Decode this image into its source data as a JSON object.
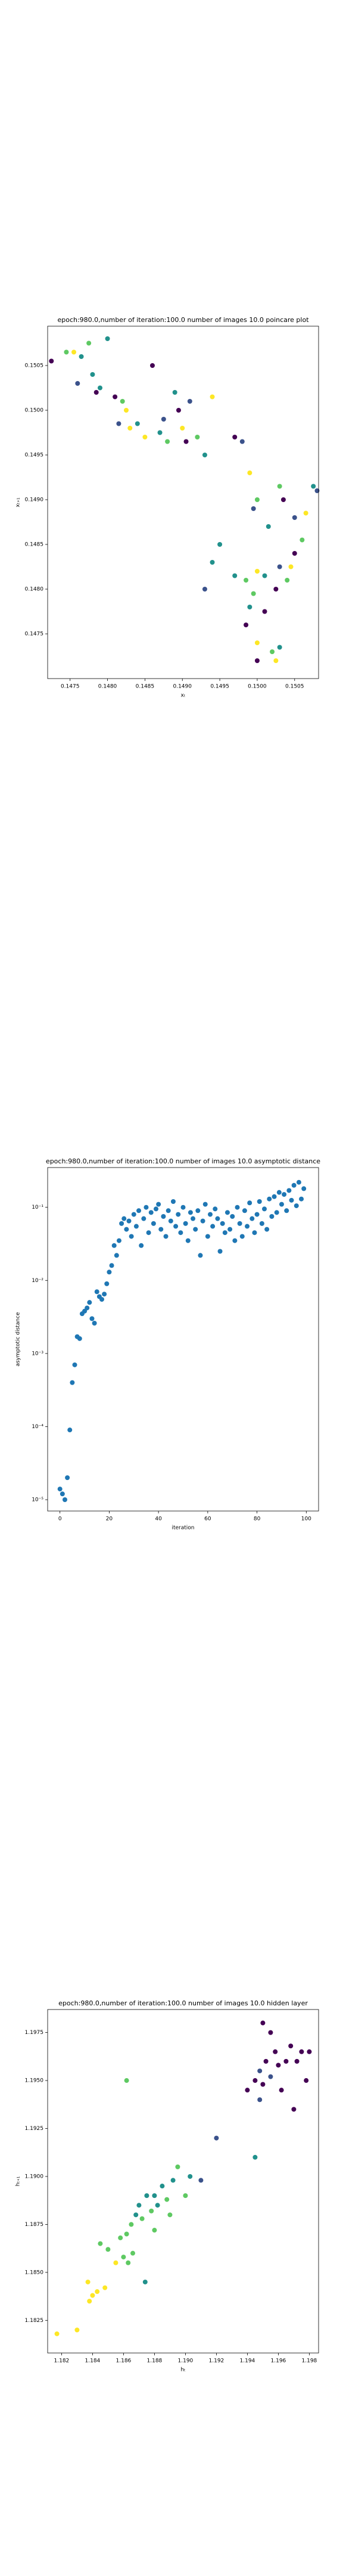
{
  "chart_data": [
    {
      "type": "scatter",
      "title": "epoch:980.0,number of iteration:100.0  number of images 10.0 poincare plot",
      "xlabel": "xₜ",
      "ylabel": "xₜ₊₁",
      "xlim": [
        0.1472,
        0.15082
      ],
      "ylim": [
        0.147,
        0.15094
      ],
      "xticks": [
        0.1475,
        {
          "value": 0.148,
          "label": "0.1480"
        },
        0.1485,
        {
          "value": 0.149,
          "label": "0.1490"
        },
        0.1495,
        {
          "value": 0.15,
          "label": "0.1500"
        },
        0.1505
      ],
      "yticks": [
        0.1475,
        {
          "value": 0.148,
          "label": "0.1480"
        },
        0.1485,
        {
          "value": 0.149,
          "label": "0.1490"
        },
        0.1495,
        {
          "value": 0.15,
          "label": "0.1500"
        },
        0.1505
      ],
      "x": [
        0.14725,
        0.14745,
        0.14755,
        0.14765,
        0.1476,
        0.1478,
        0.1479,
        0.14785,
        0.148,
        0.14775,
        0.1481,
        0.14815,
        0.1482,
        0.14825,
        0.1483,
        0.1484,
        0.1485,
        0.1486,
        0.1487,
        0.14875,
        0.1488,
        0.1489,
        0.14895,
        0.149,
        0.14905,
        0.1491,
        0.1492,
        0.1493,
        0.1494,
        0.1497,
        0.1498,
        0.1499,
        0.14995,
        0.15,
        0.15015,
        0.1503,
        0.15035,
        0.1505,
        0.15065,
        0.15075,
        0.1508,
        0.1506,
        0.1505,
        0.15045,
        0.1504,
        0.1503,
        0.15025,
        0.1501,
        0.1501,
        0.15,
        0.14995,
        0.1499,
        0.14985,
        0.15,
        0.15,
        0.1502,
        0.15025,
        0.1503,
        0.1497,
        0.1494,
        0.1493,
        0.1495,
        0.14985
      ],
      "y": [
        0.15055,
        0.15065,
        0.15065,
        0.1506,
        0.1503,
        0.1504,
        0.15025,
        0.1502,
        0.1508,
        0.15075,
        0.15015,
        0.14985,
        0.1501,
        0.15,
        0.1498,
        0.14985,
        0.1497,
        0.1505,
        0.14975,
        0.1499,
        0.14965,
        0.1502,
        0.15,
        0.1498,
        0.14965,
        0.1501,
        0.1497,
        0.1495,
        0.15015,
        0.1497,
        0.14965,
        0.1493,
        0.1489,
        0.149,
        0.1487,
        0.14915,
        0.149,
        0.1488,
        0.14885,
        0.14915,
        0.1491,
        0.14855,
        0.1484,
        0.14825,
        0.1481,
        0.14825,
        0.148,
        0.14775,
        0.14815,
        0.1482,
        0.14795,
        0.1478,
        0.1476,
        0.1474,
        0.1472,
        0.1473,
        0.1472,
        0.14735,
        0.14815,
        0.1483,
        0.148,
        0.1485,
        0.1481
      ],
      "colors": [
        "#440154",
        "#5ec962",
        "#fde725",
        "#21918c",
        "#3b528b",
        "#21918c",
        "#21918c",
        "#440154",
        "#21918c",
        "#5ec962",
        "#440154",
        "#3b528b",
        "#5ec962",
        "#fde725",
        "#fde725",
        "#21918c",
        "#fde725",
        "#440154",
        "#21918c",
        "#3b528b",
        "#5ec962",
        "#21918c",
        "#440154",
        "#fde725",
        "#440154",
        "#3b528b",
        "#5ec962",
        "#21918c",
        "#fde725",
        "#440154",
        "#3b528b",
        "#fde725",
        "#3b528b",
        "#5ec962",
        "#21918c",
        "#5ec962",
        "#440154",
        "#3b528b",
        "#fde725",
        "#21918c",
        "#3b528b",
        "#5ec962",
        "#440154",
        "#fde725",
        "#5ec962",
        "#3b528b",
        "#440154",
        "#440154",
        "#21918c",
        "#fde725",
        "#5ec962",
        "#21918c",
        "#440154",
        "#fde725",
        "#440154",
        "#5ec962",
        "#fde725",
        "#21918c",
        "#21918c",
        "#21918c",
        "#3b528b",
        "#21918c",
        "#5ec962"
      ]
    },
    {
      "type": "scatter",
      "log_y": true,
      "title": "epoch:980.0,number of iteration:100.0  number of images 10.0 asymptotic distance",
      "xlabel": "iteration",
      "ylabel": "asymptotic distance",
      "xlim": [
        -5,
        105
      ],
      "ylim": [
        7e-06,
        0.35
      ],
      "xticks": [
        0,
        20,
        40,
        60,
        80,
        100
      ],
      "yticks": [
        {
          "value": 0.1,
          "label": "10⁻¹"
        },
        {
          "value": 0.01,
          "label": "10⁻²"
        },
        {
          "value": 0.001,
          "label": "10⁻³"
        },
        {
          "value": 0.0001,
          "label": "10⁻⁴"
        },
        {
          "value": 1e-05,
          "label": "10⁻⁵"
        }
      ],
      "color": "#1f77b4",
      "x": [
        0,
        1,
        2,
        3,
        4,
        5,
        6,
        7,
        8,
        9,
        10,
        11,
        12,
        13,
        14,
        15,
        16,
        17,
        18,
        19,
        20,
        21,
        22,
        23,
        24,
        25,
        26,
        27,
        28,
        29,
        30,
        31,
        32,
        33,
        34,
        35,
        36,
        37,
        38,
        39,
        40,
        41,
        42,
        43,
        44,
        45,
        46,
        47,
        48,
        49,
        50,
        51,
        52,
        53,
        54,
        55,
        56,
        57,
        58,
        59,
        60,
        61,
        62,
        63,
        64,
        65,
        66,
        67,
        68,
        69,
        70,
        71,
        72,
        73,
        74,
        75,
        76,
        77,
        78,
        79,
        80,
        81,
        82,
        83,
        84,
        85,
        86,
        87,
        88,
        89,
        90,
        91,
        92,
        93,
        94,
        95,
        96,
        97,
        98,
        99
      ],
      "y": [
        1.4e-05,
        1.2e-05,
        1e-05,
        2e-05,
        9e-05,
        0.0004,
        0.0007,
        0.0017,
        0.0016,
        0.0035,
        0.0038,
        0.0042,
        0.005,
        0.003,
        0.0026,
        0.007,
        0.006,
        0.0055,
        0.0065,
        0.009,
        0.013,
        0.016,
        0.03,
        0.022,
        0.035,
        0.06,
        0.07,
        0.05,
        0.065,
        0.04,
        0.08,
        0.055,
        0.09,
        0.03,
        0.07,
        0.1,
        0.045,
        0.085,
        0.06,
        0.095,
        0.11,
        0.05,
        0.075,
        0.04,
        0.09,
        0.065,
        0.12,
        0.055,
        0.08,
        0.045,
        0.1,
        0.06,
        0.035,
        0.085,
        0.07,
        0.05,
        0.09,
        0.022,
        0.065,
        0.11,
        0.04,
        0.08,
        0.055,
        0.095,
        0.07,
        0.025,
        0.06,
        0.045,
        0.085,
        0.05,
        0.075,
        0.035,
        0.1,
        0.06,
        0.04,
        0.09,
        0.055,
        0.115,
        0.07,
        0.045,
        0.08,
        0.12,
        0.06,
        0.095,
        0.05,
        0.13,
        0.075,
        0.14,
        0.085,
        0.16,
        0.11,
        0.15,
        0.09,
        0.17,
        0.125,
        0.2,
        0.105,
        0.22,
        0.13,
        0.18
      ]
    },
    {
      "type": "scatter",
      "title": "epoch:980.0,number of iteration:100.0  number of images 10.0 hidden layer",
      "xlabel": "hₜ",
      "ylabel": "hₜ₊₁",
      "xlim": [
        1.1811,
        1.1986
      ],
      "ylim": [
        1.1808,
        1.1987
      ],
      "xticks": [
        1.182,
        1.184,
        1.186,
        1.188,
        {
          "value": 1.19,
          "label": "1.190"
        },
        1.192,
        1.194,
        1.196,
        1.198
      ],
      "yticks": [
        1.1825,
        {
          "value": 1.185,
          "label": "1.1850"
        },
        1.1875,
        {
          "value": 1.19,
          "label": "1.1900"
        },
        1.1925,
        {
          "value": 1.195,
          "label": "1.1950"
        },
        1.1975
      ],
      "x": [
        1.1817,
        1.183,
        1.1837,
        1.184,
        1.1843,
        1.1848,
        1.1838,
        1.1855,
        1.1845,
        1.185,
        1.1858,
        1.1862,
        1.1865,
        1.1868,
        1.186,
        1.1863,
        1.187,
        1.1872,
        1.1875,
        1.1878,
        1.188,
        1.1882,
        1.1885,
        1.1888,
        1.189,
        1.1892,
        1.1895,
        1.188,
        1.1874,
        1.1866,
        1.1862,
        1.19,
        1.1903,
        1.191,
        1.192,
        1.1945,
        1.194,
        1.1945,
        1.1948,
        1.195,
        1.1952,
        1.1955,
        1.1958,
        1.196,
        1.1962,
        1.1965,
        1.1968,
        1.197,
        1.1972,
        1.1975,
        1.1978,
        1.198,
        1.195,
        1.1955,
        1.1948
      ],
      "y": [
        1.1818,
        1.182,
        1.1845,
        1.1838,
        1.184,
        1.1842,
        1.1835,
        1.1855,
        1.1865,
        1.1862,
        1.1868,
        1.187,
        1.1875,
        1.188,
        1.1858,
        1.1855,
        1.1885,
        1.1878,
        1.189,
        1.1882,
        1.189,
        1.1885,
        1.1895,
        1.1888,
        1.188,
        1.1898,
        1.1905,
        1.1872,
        1.1845,
        1.186,
        1.195,
        1.189,
        1.19,
        1.1898,
        1.192,
        1.191,
        1.1945,
        1.195,
        1.1955,
        1.1948,
        1.196,
        1.1952,
        1.1965,
        1.1958,
        1.1945,
        1.196,
        1.1968,
        1.1935,
        1.196,
        1.1965,
        1.195,
        1.1965,
        1.198,
        1.1975,
        1.194
      ],
      "colors": [
        "#fde725",
        "#fde725",
        "#fde725",
        "#fde725",
        "#fde725",
        "#fde725",
        "#fde725",
        "#fde725",
        "#5ec962",
        "#5ec962",
        "#5ec962",
        "#5ec962",
        "#5ec962",
        "#21918c",
        "#5ec962",
        "#5ec962",
        "#21918c",
        "#5ec962",
        "#21918c",
        "#5ec962",
        "#21918c",
        "#21918c",
        "#21918c",
        "#5ec962",
        "#5ec962",
        "#21918c",
        "#5ec962",
        "#5ec962",
        "#21918c",
        "#5ec962",
        "#5ec962",
        "#5ec962",
        "#21918c",
        "#3b528b",
        "#3b528b",
        "#21918c",
        "#440154",
        "#440154",
        "#3b528b",
        "#440154",
        "#440154",
        "#3b528b",
        "#440154",
        "#440154",
        "#440154",
        "#440154",
        "#440154",
        "#440154",
        "#440154",
        "#440154",
        "#440154",
        "#440154",
        "#440154",
        "#440154",
        "#3b528b"
      ]
    }
  ]
}
